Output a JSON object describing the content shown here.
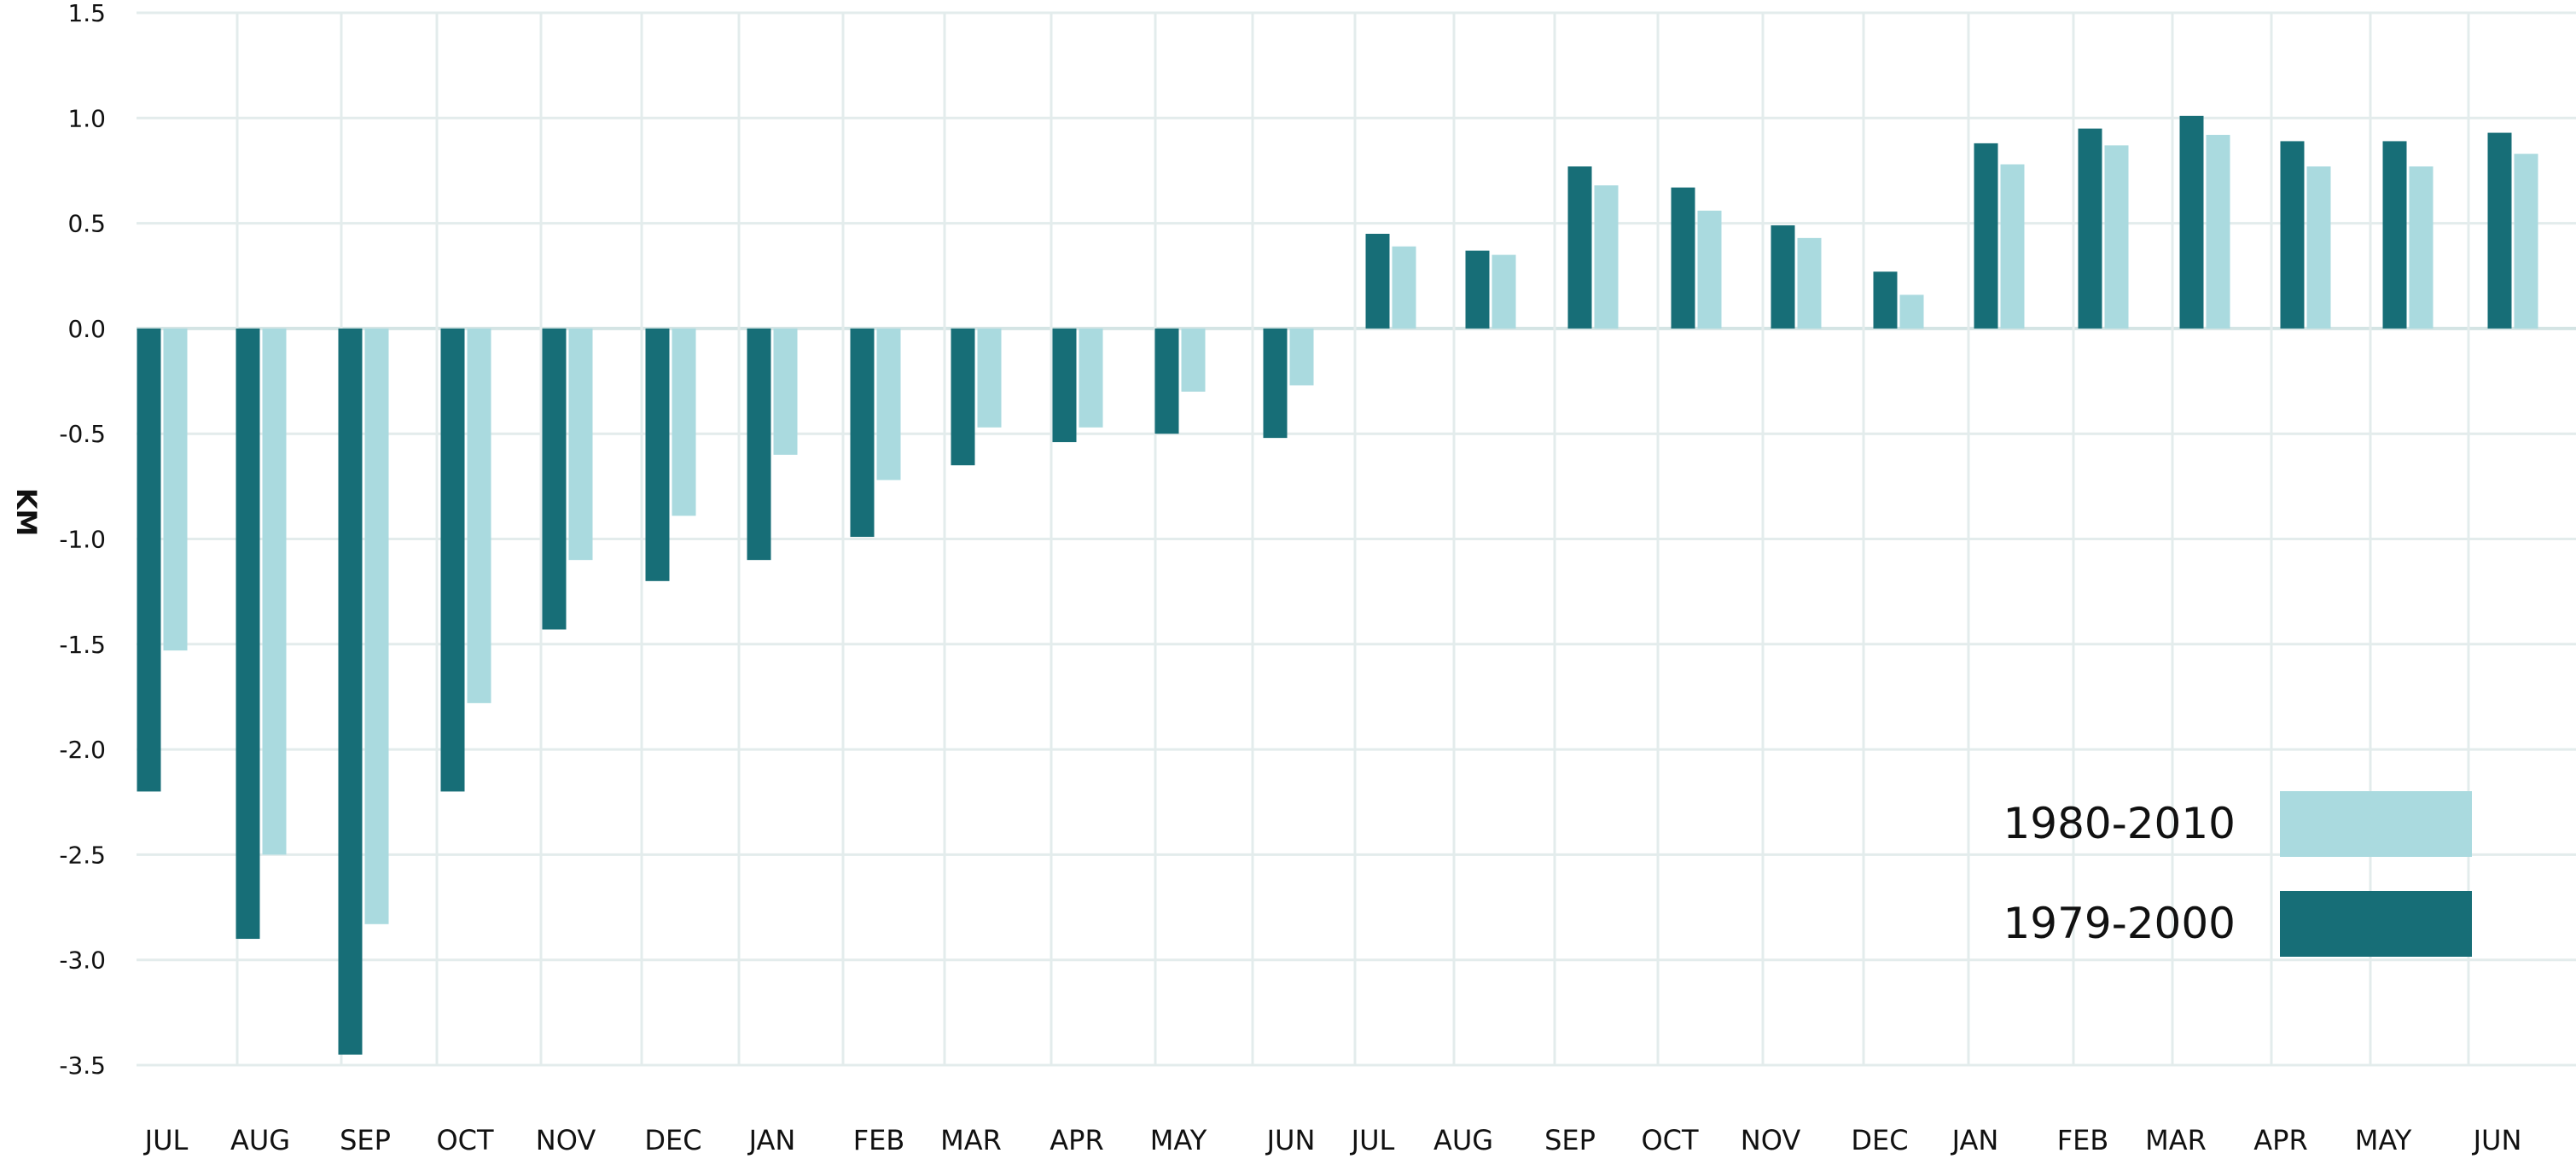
{
  "chart_data": {
    "type": "bar",
    "title": "",
    "xlabel": "",
    "ylabel": "KM",
    "ylim": [
      -3.5,
      1.5
    ],
    "yticks": [
      1.5,
      1.0,
      0.5,
      0.0,
      -0.5,
      -1.0,
      -1.5,
      -2.0,
      -2.5,
      -3.0,
      -3.5
    ],
    "ytick_labels": [
      "1.5",
      "1.0",
      "0.5",
      "0.0",
      "-0.5",
      "-1.0",
      "-1.5",
      "-2.0",
      "-2.5",
      "-3.0",
      "-3.5"
    ],
    "grid": true,
    "legend_position": "bottom-right",
    "categories": [
      "JUL",
      "AUG",
      "SEP",
      "OCT",
      "NOV",
      "DEC",
      "JAN",
      "FEB",
      "MAR",
      "APR",
      "MAY",
      "JUN",
      "JUL",
      "AUG",
      "SEP",
      "OCT",
      "NOV",
      "DEC",
      "JAN",
      "FEB",
      "MAR",
      "APR",
      "MAY",
      "JUN"
    ],
    "series": [
      {
        "name": "1979-2000",
        "color": "#176E77",
        "values": [
          -2.2,
          -2.9,
          -3.45,
          -2.2,
          -1.43,
          -1.2,
          -1.1,
          -0.99,
          -0.65,
          -0.54,
          -0.5,
          -0.52,
          0.45,
          0.37,
          0.77,
          0.67,
          0.49,
          0.27,
          0.88,
          0.95,
          1.01,
          0.89,
          0.89,
          0.93
        ]
      },
      {
        "name": "1980-2010",
        "color": "#AADADF",
        "values": [
          -1.53,
          -2.5,
          -2.83,
          -1.78,
          -1.1,
          -0.89,
          -0.6,
          -0.72,
          -0.47,
          -0.47,
          -0.3,
          -0.27,
          0.39,
          0.35,
          0.68,
          0.56,
          0.43,
          0.16,
          0.78,
          0.87,
          0.92,
          0.77,
          0.77,
          0.83
        ]
      }
    ],
    "legend_order": [
      "1980-2010",
      "1979-2000"
    ],
    "colors": {
      "grid": "#E3ECEC",
      "zero_line": "#D4E4E4"
    }
  }
}
